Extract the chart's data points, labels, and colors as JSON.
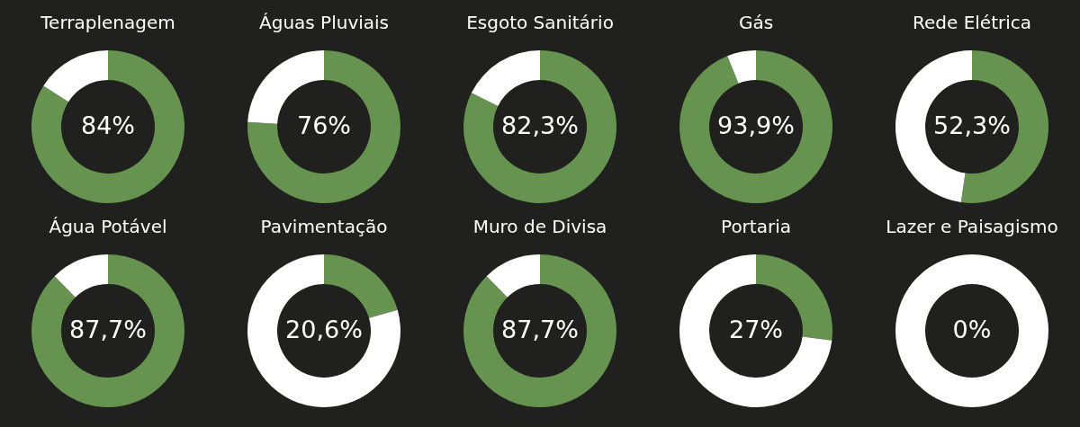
{
  "chart_data": [
    {
      "type": "donut",
      "title": "Terraplenagem",
      "categories": [
        null,
        null
      ],
      "values": [
        84,
        16
      ],
      "colors": [
        "#66934f",
        "#ffffff"
      ],
      "value_labels": [
        "84%",
        null
      ]
    },
    {
      "type": "donut",
      "title": "Águas Pluviais",
      "categories": [
        null,
        null
      ],
      "values": [
        76,
        24
      ],
      "colors": [
        "#66934f",
        "#ffffff"
      ],
      "value_labels": [
        "76%",
        null
      ]
    },
    {
      "type": "donut",
      "title": "Esgoto Sanitário",
      "categories": [
        null,
        null
      ],
      "values": [
        82.3,
        17.7
      ],
      "colors": [
        "#66934f",
        "#ffffff"
      ],
      "value_labels": [
        "82,3%",
        null
      ]
    },
    {
      "type": "donut",
      "title": "Gás",
      "categories": [
        null,
        null
      ],
      "values": [
        93.9,
        6.1
      ],
      "colors": [
        "#66934f",
        "#ffffff"
      ],
      "value_labels": [
        "93,9%",
        null
      ]
    },
    {
      "type": "donut",
      "title": "Rede Elétrica",
      "categories": [
        null,
        null
      ],
      "values": [
        52.3,
        47.7
      ],
      "colors": [
        "#66934f",
        "#ffffff"
      ],
      "value_labels": [
        "52,3%",
        null
      ]
    },
    {
      "type": "donut",
      "title": "Água Potável",
      "categories": [
        null,
        null
      ],
      "values": [
        87.7,
        12.3
      ],
      "colors": [
        "#66934f",
        "#ffffff"
      ],
      "value_labels": [
        "87,7%",
        null
      ]
    },
    {
      "type": "donut",
      "title": "Pavimentação",
      "categories": [
        null,
        null
      ],
      "values": [
        20.6,
        79.4
      ],
      "colors": [
        "#66934f",
        "#ffffff"
      ],
      "value_labels": [
        "20,6%",
        null
      ]
    },
    {
      "type": "donut",
      "title": "Muro de Divisa",
      "categories": [
        null,
        null
      ],
      "values": [
        87.7,
        12.3
      ],
      "colors": [
        "#66934f",
        "#ffffff"
      ],
      "value_labels": [
        "87,7%",
        null
      ]
    },
    {
      "type": "donut",
      "title": "Portaria",
      "categories": [
        null,
        null
      ],
      "values": [
        27,
        73
      ],
      "colors": [
        "#66934f",
        "#ffffff"
      ],
      "value_labels": [
        "27%",
        null
      ]
    },
    {
      "type": "donut",
      "title": "Lazer e Paisagismo",
      "categories": [
        null,
        null
      ],
      "values": [
        0,
        100
      ],
      "colors": [
        "#66934f",
        "#ffffff"
      ],
      "value_labels": [
        "0%",
        null
      ]
    }
  ]
}
